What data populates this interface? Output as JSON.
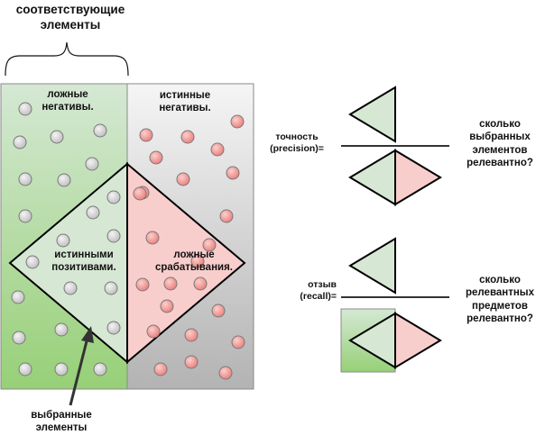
{
  "header": {
    "relevant_line1": "соответствующие",
    "relevant_line2": "элементы"
  },
  "regions": {
    "false_negatives_line1": "ложные",
    "false_negatives_line2": "негативы.",
    "true_negatives_line1": "истинные",
    "true_negatives_line2": "негативы.",
    "true_positives_line1": "истинными",
    "true_positives_line2": "позитивами.",
    "false_positives_line1": "ложные",
    "false_positives_line2": "срабатывания."
  },
  "selected_label": {
    "line1": "выбранные",
    "line2": "элементы"
  },
  "precision": {
    "label_line1": "точность",
    "label_line2": "(precision)=",
    "question_line1": "сколько",
    "question_line2": "выбранных",
    "question_line3": "элементов",
    "question_line4": "релевантно?"
  },
  "recall": {
    "label_line1": "отзыв",
    "label_line2": "(recall)=",
    "question_line1": "сколько",
    "question_line2": "релевантных",
    "question_line3": "предметов",
    "question_line4": "релевантно?"
  },
  "colors": {
    "green_fill": "#d6e8d4",
    "green_gradient_top": "#d5e8d4",
    "green_gradient_bottom": "#97d077",
    "gray_gradient_top": "#f5f5f5",
    "gray_gradient_bottom": "#b3b3b3",
    "red_fill": "#f8cecc",
    "red_dot": "#f19c99",
    "gray_dot": "#d0d0d0"
  }
}
